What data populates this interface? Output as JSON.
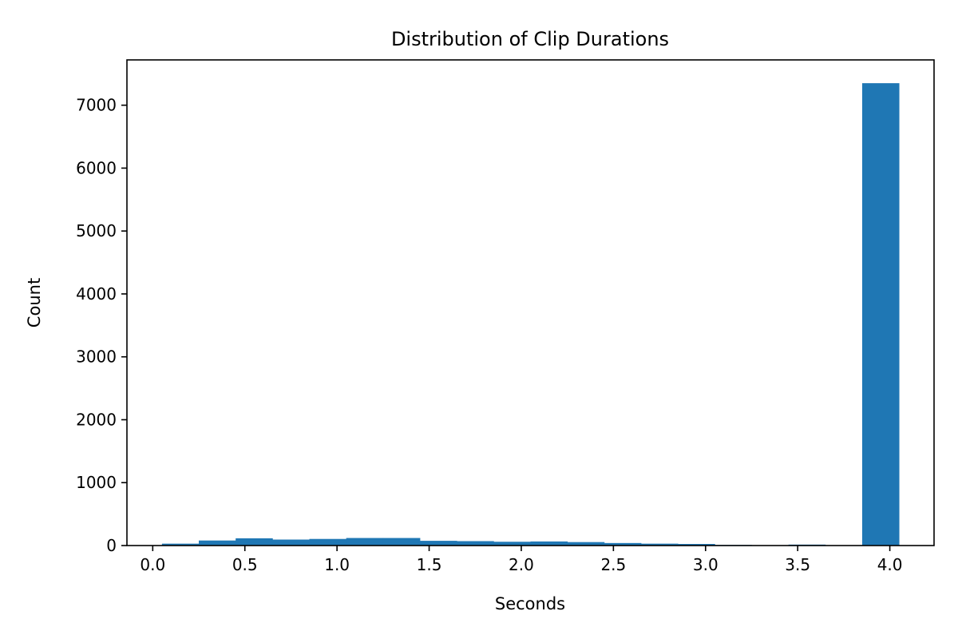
{
  "chart_data": {
    "type": "bar",
    "title": "Distribution of Clip Durations",
    "xlabel": "Seconds",
    "ylabel": "Count",
    "bin_edges": [
      0.05,
      0.25,
      0.45,
      0.65,
      0.85,
      1.05,
      1.25,
      1.45,
      1.65,
      1.85,
      2.05,
      2.25,
      2.45,
      2.65,
      2.85,
      3.05,
      3.25,
      3.45,
      3.65,
      3.85,
      4.05
    ],
    "values": [
      30,
      80,
      115,
      95,
      105,
      120,
      120,
      75,
      70,
      60,
      65,
      55,
      40,
      30,
      25,
      10,
      5,
      15,
      0,
      7350
    ],
    "xlim": [
      -0.14,
      4.24
    ],
    "ylim": [
      0,
      7720
    ],
    "xticks": [
      0.0,
      0.5,
      1.0,
      1.5,
      2.0,
      2.5,
      3.0,
      3.5,
      4.0
    ],
    "xtick_labels": [
      "0.0",
      "0.5",
      "1.0",
      "1.5",
      "2.0",
      "2.5",
      "3.0",
      "3.5",
      "4.0"
    ],
    "yticks": [
      0,
      1000,
      2000,
      3000,
      4000,
      5000,
      6000,
      7000
    ],
    "ytick_labels": [
      "0",
      "1000",
      "2000",
      "3000",
      "4000",
      "5000",
      "6000",
      "7000"
    ],
    "bar_color": "#1f77b4",
    "grid": false,
    "legend": false
  }
}
